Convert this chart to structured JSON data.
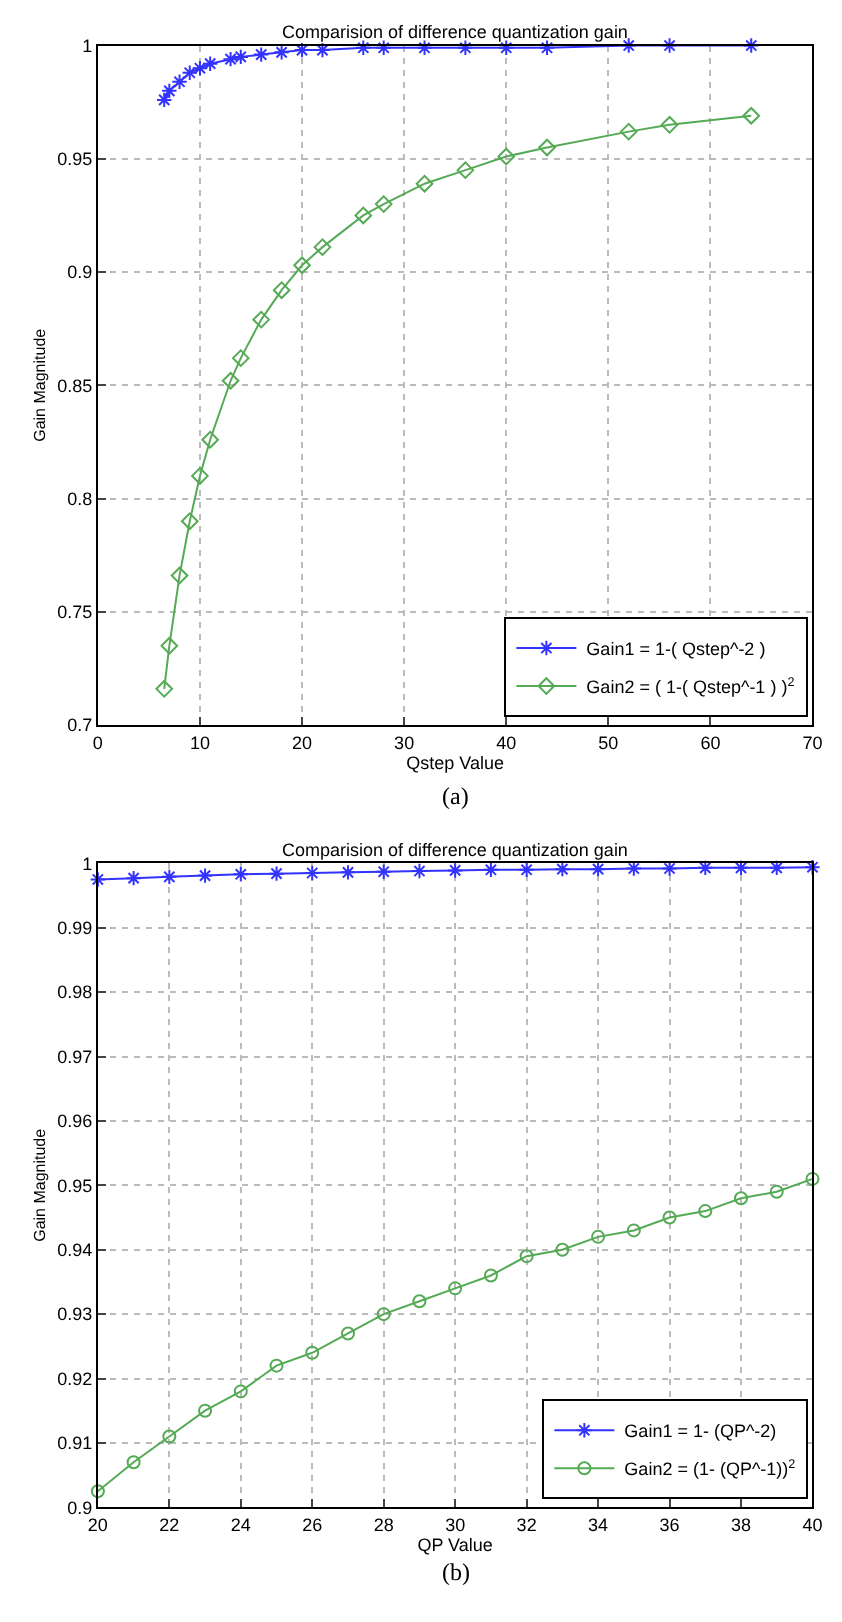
{
  "chart_data": [
    {
      "type": "line",
      "title": "Comparision of difference quantization gain",
      "xlabel": "Qstep Value",
      "ylabel": "Gain Magnitude",
      "annotations": [
        "(a)"
      ],
      "x": [
        6.5,
        7,
        8,
        9,
        10,
        11,
        13,
        14,
        16,
        18,
        20,
        22,
        26,
        28,
        32,
        36,
        40,
        44,
        52,
        56,
        64
      ],
      "series": [
        {
          "name": "Gain1 = 1-( Qstep^-2 )",
          "color": "#3333ff",
          "marker": "cross",
          "values": [
            0.976,
            0.98,
            0.984,
            0.988,
            0.99,
            0.992,
            0.994,
            0.995,
            0.996,
            0.997,
            0.998,
            0.998,
            0.999,
            0.999,
            0.999,
            0.999,
            0.999,
            0.999,
            1.0,
            1.0,
            1.0
          ]
        },
        {
          "name": "Gain2 = ( 1-( Qstep^-1 ) )$^{2}$",
          "color": "#55aa55",
          "marker": "diamond",
          "values": [
            0.716,
            0.735,
            0.766,
            0.79,
            0.81,
            0.826,
            0.852,
            0.862,
            0.879,
            0.892,
            0.903,
            0.911,
            0.925,
            0.93,
            0.939,
            0.945,
            0.951,
            0.955,
            0.962,
            0.965,
            0.969
          ]
        }
      ],
      "xlim": [
        0,
        70
      ],
      "xticks": [
        0,
        10,
        20,
        30,
        40,
        50,
        60,
        70
      ],
      "ylim": [
        0.7,
        1
      ],
      "yticks": [
        0.7,
        0.75,
        0.8,
        0.85,
        0.9,
        0.95,
        1
      ],
      "grid": true,
      "legend": "bottom right",
      "line_style": "solid"
    },
    {
      "type": "line",
      "title": "Comparision of difference quantization gain",
      "xlabel": "QP Value",
      "ylabel": "Gain Magnitude",
      "annotations": [
        "(b)"
      ],
      "x": [
        20,
        21,
        22,
        23,
        24,
        25,
        26,
        27,
        28,
        29,
        30,
        31,
        32,
        33,
        34,
        35,
        36,
        37,
        38,
        39,
        40
      ],
      "series": [
        {
          "name": "Gain1 = 1- (QP^-2)",
          "color": "#3333ff",
          "marker": "cross",
          "values": [
            0.9975,
            0.9977,
            0.9979,
            0.9981,
            0.9983,
            0.9984,
            0.9985,
            0.9986,
            0.9987,
            0.9988,
            0.9989,
            0.999,
            0.999,
            0.9991,
            0.9991,
            0.9992,
            0.9992,
            0.9993,
            0.9993,
            0.9993,
            0.9994
          ]
        },
        {
          "name": "Gain2 = (1- (QP^-1))$^{2}$",
          "color": "#55aa55",
          "marker": "circle",
          "values": [
            0.9025,
            0.907,
            0.911,
            0.915,
            0.918,
            0.922,
            0.924,
            0.927,
            0.93,
            0.932,
            0.934,
            0.936,
            0.939,
            0.94,
            0.942,
            0.943,
            0.945,
            0.946,
            0.948,
            0.949,
            0.951
          ]
        }
      ],
      "xlim": [
        20,
        40
      ],
      "xticks": [
        20,
        22,
        24,
        26,
        28,
        30,
        32,
        34,
        36,
        38,
        40
      ],
      "ylim": [
        0.9,
        1
      ],
      "yticks": [
        0.9,
        0.91,
        0.92,
        0.93,
        0.94,
        0.95,
        0.96,
        0.97,
        0.98,
        0.99,
        1
      ],
      "grid": true,
      "legend": "bottom right",
      "line_style": "solid"
    }
  ]
}
